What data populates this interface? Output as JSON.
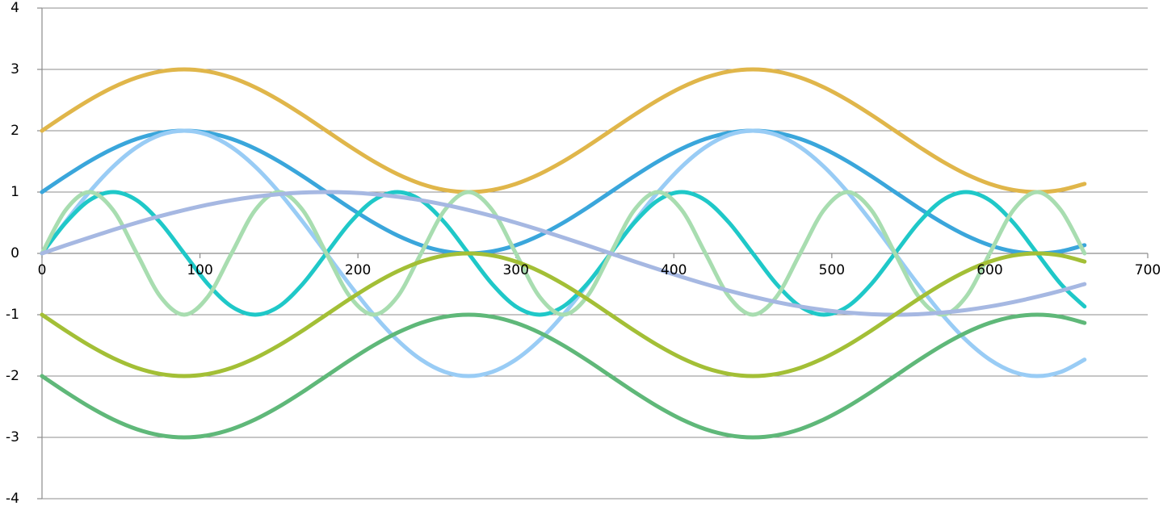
{
  "chart_data": {
    "type": "line",
    "title": "",
    "xlabel": "",
    "ylabel": "",
    "xlim": [
      0,
      700
    ],
    "ylim": [
      -4,
      4
    ],
    "x_ticks": [
      0,
      100,
      200,
      300,
      400,
      500,
      600,
      700
    ],
    "y_ticks": [
      4,
      3,
      2,
      1,
      0,
      -1,
      -2,
      -3,
      -4
    ],
    "grid": "horizontal",
    "legend": "none",
    "x": [
      0,
      15,
      30,
      45,
      60,
      75,
      90,
      105,
      120,
      135,
      150,
      165,
      180,
      195,
      210,
      225,
      240,
      255,
      270,
      285,
      300,
      315,
      330,
      345,
      360,
      375,
      390,
      405,
      420,
      435,
      450,
      465,
      480,
      495,
      510,
      525,
      540,
      555,
      570,
      585,
      600,
      615,
      630,
      645,
      660
    ],
    "series": [
      {
        "color": "#E0B64A",
        "values": [
          2.0,
          2.259,
          2.5,
          2.707,
          2.866,
          2.966,
          3.0,
          2.966,
          2.866,
          2.707,
          2.5,
          2.259,
          2.0,
          1.741,
          1.5,
          1.293,
          1.134,
          1.034,
          1.0,
          1.034,
          1.134,
          1.293,
          1.5,
          1.741,
          2.0,
          2.259,
          2.5,
          2.707,
          2.866,
          2.966,
          3.0,
          2.966,
          2.866,
          2.707,
          2.5,
          2.259,
          2.0,
          1.741,
          1.5,
          1.293,
          1.134,
          1.034,
          1.0,
          1.034,
          1.134
        ]
      },
      {
        "color": "#3AA6DB",
        "values": [
          1.0,
          1.259,
          1.5,
          1.707,
          1.866,
          1.966,
          2.0,
          1.966,
          1.866,
          1.707,
          1.5,
          1.259,
          1.0,
          0.741,
          0.5,
          0.293,
          0.134,
          0.034,
          0.0,
          0.034,
          0.134,
          0.293,
          0.5,
          0.741,
          1.0,
          1.259,
          1.5,
          1.707,
          1.866,
          1.966,
          2.0,
          1.966,
          1.866,
          1.707,
          1.5,
          1.259,
          1.0,
          0.741,
          0.5,
          0.293,
          0.134,
          0.034,
          0.0,
          0.034,
          0.134
        ]
      },
      {
        "color": "#99CCF5",
        "values": [
          0.0,
          0.518,
          1.0,
          1.414,
          1.732,
          1.932,
          2.0,
          1.932,
          1.732,
          1.414,
          1.0,
          0.518,
          0.0,
          -0.518,
          -1.0,
          -1.414,
          -1.732,
          -1.932,
          -2.0,
          -1.932,
          -1.732,
          -1.414,
          -1.0,
          -0.518,
          0.0,
          0.518,
          1.0,
          1.414,
          1.732,
          1.932,
          2.0,
          1.932,
          1.732,
          1.414,
          1.0,
          0.518,
          0.0,
          -0.518,
          -1.0,
          -1.414,
          -1.732,
          -1.932,
          -2.0,
          -1.932,
          -1.732
        ]
      },
      {
        "color": "#1FC8C8",
        "values": [
          0.0,
          0.5,
          0.866,
          1.0,
          0.866,
          0.5,
          0.0,
          -0.5,
          -0.866,
          -1.0,
          -0.866,
          -0.5,
          0.0,
          0.5,
          0.866,
          1.0,
          0.866,
          0.5,
          0.0,
          -0.5,
          -0.866,
          -1.0,
          -0.866,
          -0.5,
          0.0,
          0.5,
          0.866,
          1.0,
          0.866,
          0.5,
          0.0,
          -0.5,
          -0.866,
          -1.0,
          -0.866,
          -0.5,
          0.0,
          0.5,
          0.866,
          1.0,
          0.866,
          0.5,
          0.0,
          -0.5,
          -0.866
        ]
      },
      {
        "color": "#A8DDB0",
        "values": [
          0.0,
          0.707,
          1.0,
          0.707,
          0.0,
          -0.707,
          -1.0,
          -0.707,
          0.0,
          0.707,
          1.0,
          0.707,
          0.0,
          -0.707,
          -1.0,
          -0.707,
          0.0,
          0.707,
          1.0,
          0.707,
          0.0,
          -0.707,
          -1.0,
          -0.707,
          0.0,
          0.707,
          1.0,
          0.707,
          0.0,
          -0.707,
          -1.0,
          -0.707,
          0.0,
          0.707,
          1.0,
          0.707,
          0.0,
          -0.707,
          -1.0,
          -0.707,
          0.0,
          0.707,
          1.0,
          0.707,
          0.0
        ]
      },
      {
        "color": "#A6B8E2",
        "values": [
          0.0,
          0.131,
          0.259,
          0.383,
          0.5,
          0.609,
          0.707,
          0.793,
          0.866,
          0.924,
          0.966,
          0.991,
          1.0,
          0.991,
          0.966,
          0.924,
          0.866,
          0.793,
          0.707,
          0.609,
          0.5,
          0.383,
          0.259,
          0.131,
          0.0,
          -0.131,
          -0.259,
          -0.383,
          -0.5,
          -0.609,
          -0.707,
          -0.793,
          -0.866,
          -0.924,
          -0.966,
          -0.991,
          -1.0,
          -0.991,
          -0.966,
          -0.924,
          -0.866,
          -0.793,
          -0.707,
          -0.609,
          -0.5
        ]
      },
      {
        "color": "#A3BF36",
        "values": [
          -1.0,
          -1.259,
          -1.5,
          -1.707,
          -1.866,
          -1.966,
          -2.0,
          -1.966,
          -1.866,
          -1.707,
          -1.5,
          -1.259,
          -1.0,
          -0.741,
          -0.5,
          -0.293,
          -0.134,
          -0.034,
          0.0,
          -0.034,
          -0.134,
          -0.293,
          -0.5,
          -0.741,
          -1.0,
          -1.259,
          -1.5,
          -1.707,
          -1.866,
          -1.966,
          -2.0,
          -1.966,
          -1.866,
          -1.707,
          -1.5,
          -1.259,
          -1.0,
          -0.741,
          -0.5,
          -0.293,
          -0.134,
          -0.034,
          0.0,
          -0.034,
          -0.134
        ]
      },
      {
        "color": "#5FB879",
        "values": [
          -2.0,
          -2.259,
          -2.5,
          -2.707,
          -2.866,
          -2.966,
          -3.0,
          -2.966,
          -2.866,
          -2.707,
          -2.5,
          -2.259,
          -2.0,
          -1.741,
          -1.5,
          -1.293,
          -1.134,
          -1.034,
          -1.0,
          -1.034,
          -1.134,
          -1.293,
          -1.5,
          -1.741,
          -2.0,
          -2.259,
          -2.5,
          -2.707,
          -2.866,
          -2.966,
          -3.0,
          -2.966,
          -2.866,
          -2.707,
          -2.5,
          -2.259,
          -2.0,
          -1.741,
          -1.5,
          -1.293,
          -1.134,
          -1.034,
          -1.0,
          -1.034,
          -1.134
        ]
      }
    ]
  }
}
